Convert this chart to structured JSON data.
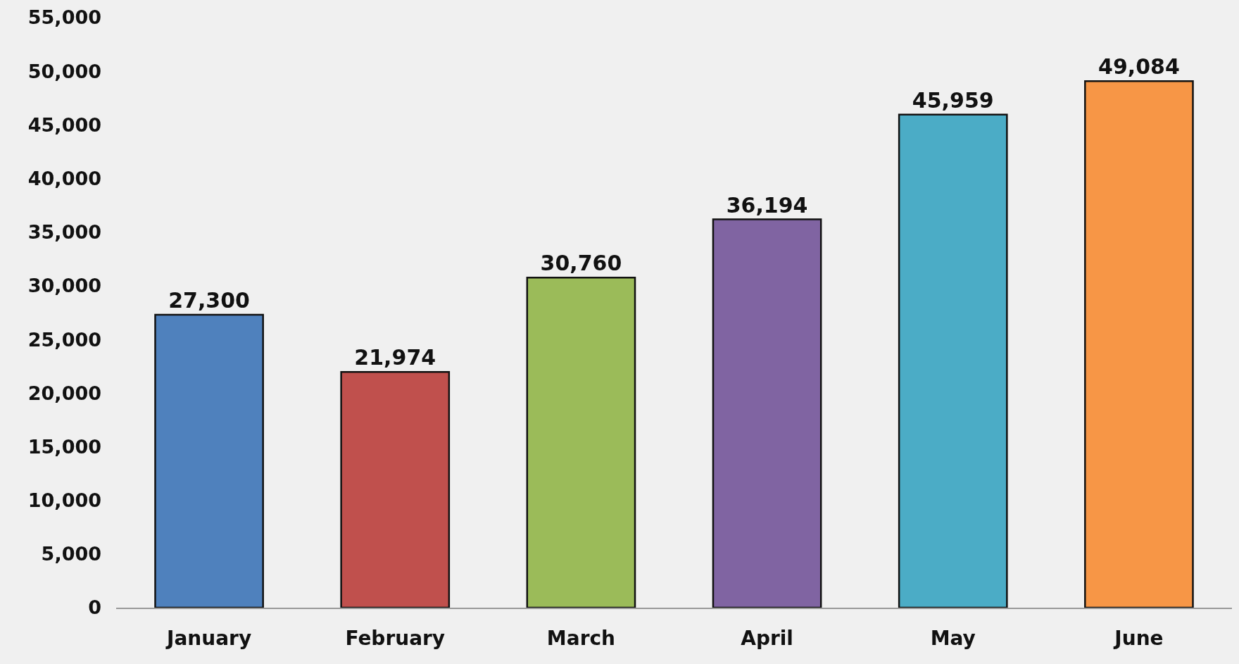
{
  "chart_data": {
    "type": "bar",
    "categories": [
      "January",
      "February",
      "March",
      "April",
      "May",
      "June"
    ],
    "values": [
      27300,
      21974,
      30760,
      36194,
      45959,
      49084
    ],
    "colors": [
      "#4f81bd",
      "#c0504d",
      "#9bbb59",
      "#8064a2",
      "#4bacc6",
      "#f79646"
    ],
    "value_labels": [
      "27,300",
      "21,974",
      "30,760",
      "36,194",
      "45,959",
      "49,084"
    ],
    "ylim": [
      0,
      55000
    ],
    "yticks": [
      {
        "value": 0,
        "label": "0"
      },
      {
        "value": 5000,
        "label": "5,000"
      },
      {
        "value": 10000,
        "label": "10,000"
      },
      {
        "value": 15000,
        "label": "15,000"
      },
      {
        "value": 20000,
        "label": "20,000"
      },
      {
        "value": 25000,
        "label": "25,000"
      },
      {
        "value": 30000,
        "label": "30,000"
      },
      {
        "value": 35000,
        "label": "35,000"
      },
      {
        "value": 40000,
        "label": "40,000"
      },
      {
        "value": 45000,
        "label": "45,000"
      },
      {
        "value": 50000,
        "label": "50,000"
      },
      {
        "value": 55000,
        "label": "55,000"
      }
    ],
    "grid": false
  }
}
